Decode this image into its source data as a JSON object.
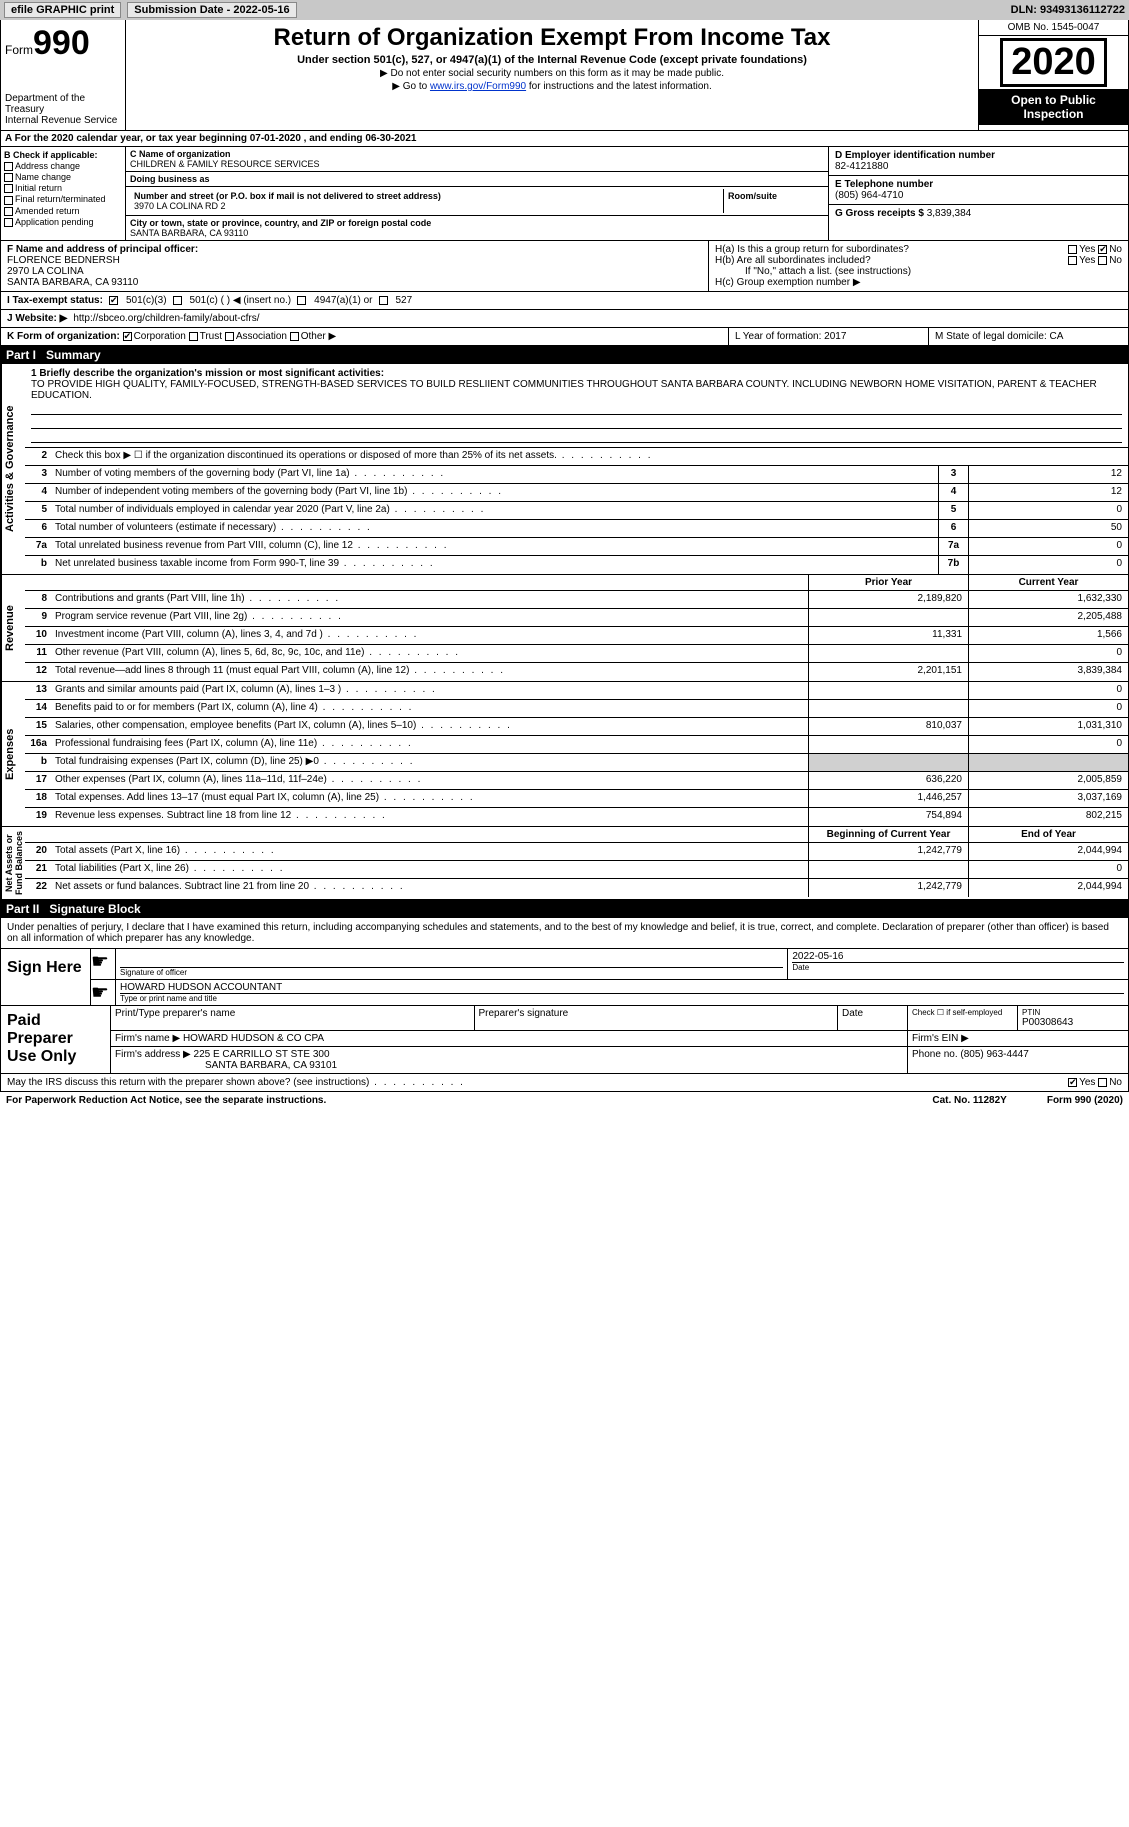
{
  "topbar": {
    "efile": "efile GRAPHIC print",
    "sub_label": "Submission Date - ",
    "sub_date": "2022-05-16",
    "dln_label": "DLN: ",
    "dln": "93493136112722"
  },
  "header": {
    "form_word": "Form",
    "form_num": "990",
    "dept": "Department of the Treasury\nInternal Revenue Service",
    "title": "Return of Organization Exempt From Income Tax",
    "sub": "Under section 501(c), 527, or 4947(a)(1) of the Internal Revenue Code (except private foundations)",
    "note1": "▶ Do not enter social security numbers on this form as it may be made public.",
    "note2_pre": "▶ Go to ",
    "note2_link": "www.irs.gov/Form990",
    "note2_post": " for instructions and the latest information.",
    "omb": "OMB No. 1545-0047",
    "year": "2020",
    "inspect": "Open to Public Inspection"
  },
  "row_a": "A For the 2020 calendar year, or tax year beginning 07-01-2020    , and ending 06-30-2021",
  "section_b": {
    "hd": "B Check if applicable:",
    "opts": [
      "Address change",
      "Name change",
      "Initial return",
      "Final return/terminated",
      "Amended return",
      "Application pending"
    ]
  },
  "section_c": {
    "lbl_name": "C Name of organization",
    "org": "CHILDREN & FAMILY RESOURCE SERVICES",
    "lbl_dba": "Doing business as",
    "dba": "",
    "lbl_addr": "Number and street (or P.O. box if mail is not delivered to street address)",
    "room_lbl": "Room/suite",
    "addr": "3970 LA COLINA RD 2",
    "lbl_city": "City or town, state or province, country, and ZIP or foreign postal code",
    "city": "SANTA BARBARA, CA  93110"
  },
  "section_d": {
    "lbl": "D Employer identification number",
    "val": "82-4121880"
  },
  "section_e": {
    "lbl": "E Telephone number",
    "val": "(805) 964-4710"
  },
  "section_g": {
    "lbl": "G Gross receipts $ ",
    "val": "3,839,384"
  },
  "section_f": {
    "lbl": "F Name and address of principal officer:",
    "name": "FLORENCE BEDNERSH",
    "addr1": "2970 LA COLINA",
    "addr2": "SANTA BARBARA, CA  93110"
  },
  "section_h": {
    "ha": "H(a)  Is this a group return for subordinates?",
    "hb": "H(b)  Are all subordinates included?",
    "hb_note": "If \"No,\" attach a list. (see instructions)",
    "hc": "H(c)  Group exemption number ▶",
    "yes": "Yes",
    "no": "No"
  },
  "row_i": {
    "lbl": "I   Tax-exempt status:",
    "o1": "501(c)(3)",
    "o2": "501(c) (  ) ◀ (insert no.)",
    "o3": "4947(a)(1) or",
    "o4": "527"
  },
  "row_j": {
    "lbl": "J   Website: ▶",
    "url": "http://sbceo.org/children-family/about-cfrs/"
  },
  "row_k": {
    "lbl": "K Form of organization:",
    "o1": "Corporation",
    "o2": "Trust",
    "o3": "Association",
    "o4": "Other ▶"
  },
  "row_l": "L Year of formation: 2017",
  "row_m": "M State of legal domicile: CA",
  "parts": {
    "p1": "Part I",
    "p1t": "Summary",
    "p2": "Part II",
    "p2t": "Signature Block"
  },
  "side": {
    "s1": "Activities & Governance",
    "s2": "Revenue",
    "s3": "Expenses",
    "s4": "Net Assets or\nFund Balances"
  },
  "mission": {
    "lbl": "1  Briefly describe the organization's mission or most significant activities:",
    "txt": "TO PROVIDE HIGH QUALITY, FAMILY-FOCUSED, STRENGTH-BASED SERVICES TO BUILD RESLIIENT COMMUNITIES THROUGHOUT SANTA BARBARA COUNTY. INCLUDING NEWBORN HOME VISITATION, PARENT & TEACHER EDUCATION."
  },
  "lines_gov": [
    {
      "n": "2",
      "t": "Check this box ▶ ☐  if the organization discontinued its operations or disposed of more than 25% of its net assets.",
      "box": "",
      "v": ""
    },
    {
      "n": "3",
      "t": "Number of voting members of the governing body (Part VI, line 1a)",
      "box": "3",
      "v": "12"
    },
    {
      "n": "4",
      "t": "Number of independent voting members of the governing body (Part VI, line 1b)",
      "box": "4",
      "v": "12"
    },
    {
      "n": "5",
      "t": "Total number of individuals employed in calendar year 2020 (Part V, line 2a)",
      "box": "5",
      "v": "0"
    },
    {
      "n": "6",
      "t": "Total number of volunteers (estimate if necessary)",
      "box": "6",
      "v": "50"
    },
    {
      "n": "7a",
      "t": "Total unrelated business revenue from Part VIII, column (C), line 12",
      "box": "7a",
      "v": "0"
    },
    {
      "n": "b",
      "t": "Net unrelated business taxable income from Form 990-T, line 39",
      "box": "7b",
      "v": "0"
    }
  ],
  "col_hdr": {
    "prior": "Prior Year",
    "current": "Current Year",
    "boy": "Beginning of Current Year",
    "eoy": "End of Year"
  },
  "lines_rev": [
    {
      "n": "8",
      "t": "Contributions and grants (Part VIII, line 1h)",
      "p": "2,189,820",
      "c": "1,632,330"
    },
    {
      "n": "9",
      "t": "Program service revenue (Part VIII, line 2g)",
      "p": "",
      "c": "2,205,488"
    },
    {
      "n": "10",
      "t": "Investment income (Part VIII, column (A), lines 3, 4, and 7d )",
      "p": "11,331",
      "c": "1,566"
    },
    {
      "n": "11",
      "t": "Other revenue (Part VIII, column (A), lines 5, 6d, 8c, 9c, 10c, and 11e)",
      "p": "",
      "c": "0"
    },
    {
      "n": "12",
      "t": "Total revenue—add lines 8 through 11 (must equal Part VIII, column (A), line 12)",
      "p": "2,201,151",
      "c": "3,839,384"
    }
  ],
  "lines_exp": [
    {
      "n": "13",
      "t": "Grants and similar amounts paid (Part IX, column (A), lines 1–3 )",
      "p": "",
      "c": "0"
    },
    {
      "n": "14",
      "t": "Benefits paid to or for members (Part IX, column (A), line 4)",
      "p": "",
      "c": "0"
    },
    {
      "n": "15",
      "t": "Salaries, other compensation, employee benefits (Part IX, column (A), lines 5–10)",
      "p": "810,037",
      "c": "1,031,310"
    },
    {
      "n": "16a",
      "t": "Professional fundraising fees (Part IX, column (A), line 11e)",
      "p": "",
      "c": "0"
    },
    {
      "n": "b",
      "t": "Total fundraising expenses (Part IX, column (D), line 25) ▶0",
      "p": "grey",
      "c": "grey"
    },
    {
      "n": "17",
      "t": "Other expenses (Part IX, column (A), lines 11a–11d, 11f–24e)",
      "p": "636,220",
      "c": "2,005,859"
    },
    {
      "n": "18",
      "t": "Total expenses. Add lines 13–17 (must equal Part IX, column (A), line 25)",
      "p": "1,446,257",
      "c": "3,037,169"
    },
    {
      "n": "19",
      "t": "Revenue less expenses. Subtract line 18 from line 12",
      "p": "754,894",
      "c": "802,215"
    }
  ],
  "lines_net": [
    {
      "n": "20",
      "t": "Total assets (Part X, line 16)",
      "p": "1,242,779",
      "c": "2,044,994"
    },
    {
      "n": "21",
      "t": "Total liabilities (Part X, line 26)",
      "p": "",
      "c": "0"
    },
    {
      "n": "22",
      "t": "Net assets or fund balances. Subtract line 21 from line 20",
      "p": "1,242,779",
      "c": "2,044,994"
    }
  ],
  "sig_intro": "Under penalties of perjury, I declare that I have examined this return, including accompanying schedules and statements, and to the best of my knowledge and belief, it is true, correct, and complete. Declaration of preparer (other than officer) is based on all information of which preparer has any knowledge.",
  "sign": {
    "here": "Sign Here",
    "sig_lbl": "Signature of officer",
    "date_lbl": "Date",
    "date": "2022-05-16",
    "name": "HOWARD HUDSON  ACCOUNTANT",
    "name_lbl": "Type or print name and title"
  },
  "prep": {
    "hdr": "Paid Preparer Use Only",
    "c1": "Print/Type preparer's name",
    "c2": "Preparer's signature",
    "c3": "Date",
    "c4a": "Check ☐ if self-employed",
    "c5a": "PTIN",
    "c5b": "P00308643",
    "firm_lbl": "Firm's name    ▶",
    "firm": "HOWARD HUDSON & CO CPA",
    "ein_lbl": "Firm's EIN ▶",
    "addr_lbl": "Firm's address ▶",
    "addr1": "225 E CARRILLO ST STE 300",
    "addr2": "SANTA BARBARA, CA  93101",
    "phone_lbl": "Phone no. ",
    "phone": "(805) 963-4447"
  },
  "discuss": "May the IRS discuss this return with the preparer shown above? (see instructions)",
  "footer": {
    "l": "For Paperwork Reduction Act Notice, see the separate instructions.",
    "m": "Cat. No. 11282Y",
    "r": "Form 990 (2020)"
  },
  "yesno": {
    "yes": "Yes",
    "no": "No"
  }
}
